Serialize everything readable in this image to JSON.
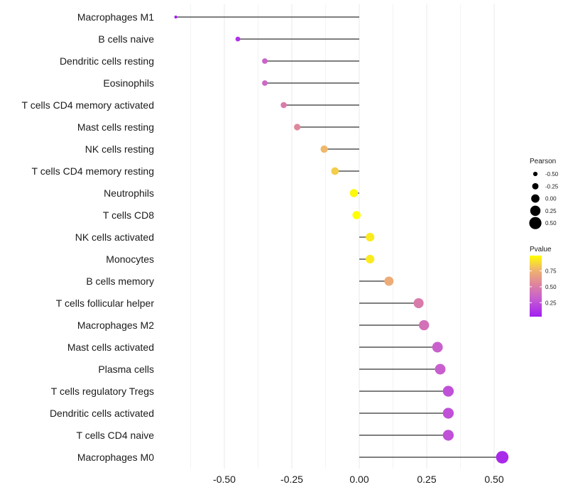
{
  "chart_data": {
    "type": "lollipop",
    "title": "",
    "xlabel": "",
    "ylabel": "",
    "xlim": [
      -0.7,
      0.55
    ],
    "x_ticks": [
      -0.5,
      -0.25,
      0.0,
      0.25,
      0.5
    ],
    "x_tick_labels": [
      "-0.50",
      "-0.25",
      "0.00",
      "0.25",
      "0.50"
    ],
    "grid": true,
    "categories": [
      "Macrophages M1",
      "B cells naive",
      "Dendritic cells resting",
      "Eosinophils",
      "T cells CD4 memory activated",
      "Mast cells resting",
      "NK cells resting",
      "T cells CD4 memory resting",
      "Neutrophils",
      "T cells CD8",
      "NK cells activated",
      "Monocytes",
      "B cells memory",
      "T cells follicular helper",
      "Macrophages M2",
      "Mast cells activated",
      "Plasma cells",
      "T cells regulatory  Tregs ",
      "Dendritic cells activated",
      "T cells CD4 naive",
      "Macrophages M0"
    ],
    "pearson": [
      -0.68,
      -0.45,
      -0.35,
      -0.35,
      -0.28,
      -0.23,
      -0.13,
      -0.09,
      -0.02,
      -0.01,
      0.04,
      0.04,
      0.11,
      0.22,
      0.24,
      0.29,
      0.3,
      0.33,
      0.33,
      0.33,
      0.53
    ],
    "pvalue": [
      0.03,
      0.12,
      0.35,
      0.37,
      0.48,
      0.55,
      0.78,
      0.84,
      0.97,
      0.99,
      0.93,
      0.93,
      0.72,
      0.48,
      0.42,
      0.33,
      0.32,
      0.25,
      0.25,
      0.25,
      0.08
    ],
    "legend_size": {
      "title": "Pearson",
      "values": [
        -0.5,
        -0.25,
        0.0,
        0.25,
        0.5
      ],
      "labels": [
        "-0.50",
        "-0.25",
        "0.00",
        "0.25",
        "0.50"
      ]
    },
    "legend_color": {
      "title": "Pvalue",
      "ticks": [
        0.25,
        0.5,
        0.75
      ],
      "labels": [
        "0.25",
        "0.50",
        "0.75"
      ],
      "range": [
        0.03,
        0.99
      ],
      "colors": [
        "#a21ef0",
        "#c85fcf",
        "#e0889a",
        "#f0b86a",
        "#ffff00"
      ]
    },
    "line_color": "#333333",
    "grid_color": "#ebebeb"
  }
}
